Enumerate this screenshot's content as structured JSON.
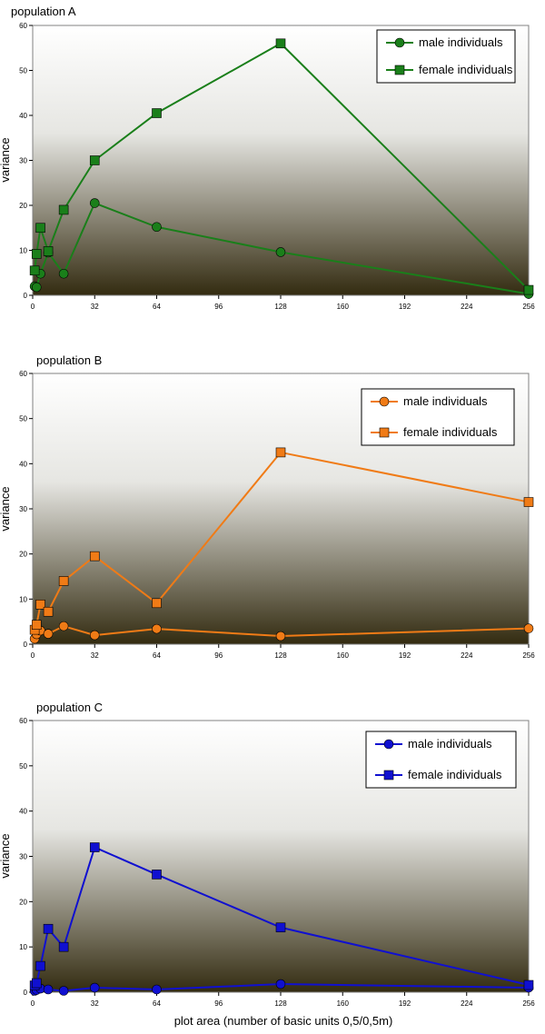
{
  "colors": {
    "plot_gradient_top": "#ffffff",
    "plot_gradient_bottom": "#332b10",
    "axis": "#808080"
  },
  "chart_data": [
    {
      "type": "line",
      "title": "population A",
      "ylabel": "variance",
      "xlabel": "",
      "xlim": [
        0,
        256
      ],
      "ylim": [
        0,
        60
      ],
      "xticks": [
        0,
        32,
        64,
        96,
        128,
        160,
        192,
        224,
        256
      ],
      "yticks": [
        0,
        10,
        20,
        30,
        40,
        50,
        60
      ],
      "grid": false,
      "legend": "top-right",
      "x": [
        1,
        2,
        4,
        8,
        16,
        32,
        64,
        128,
        256
      ],
      "series": [
        {
          "name": "male individuals",
          "marker": "circle",
          "color": "#1a7f1a",
          "values": [
            2,
            1.8,
            4.8,
            9.5,
            4.8,
            20.5,
            15.2,
            9.6,
            0.3
          ]
        },
        {
          "name": "female individuals",
          "marker": "square",
          "color": "#1a7f1a",
          "values": [
            5.5,
            9.2,
            15,
            9.8,
            19,
            30,
            40.5,
            56,
            1.2
          ]
        }
      ]
    },
    {
      "type": "line",
      "title": "population B",
      "ylabel": "variance",
      "xlabel": "",
      "xlim": [
        0,
        256
      ],
      "ylim": [
        0,
        60
      ],
      "xticks": [
        0,
        32,
        64,
        96,
        128,
        160,
        192,
        224,
        256
      ],
      "yticks": [
        0,
        10,
        20,
        30,
        40,
        50,
        60
      ],
      "grid": false,
      "legend": "top-right",
      "x": [
        1,
        2,
        4,
        8,
        16,
        32,
        64,
        128,
        256
      ],
      "series": [
        {
          "name": "male individuals",
          "marker": "circle",
          "color": "#f07b16",
          "values": [
            1.2,
            2.2,
            3,
            2.3,
            4,
            2,
            3.4,
            1.8,
            3.5
          ]
        },
        {
          "name": "female individuals",
          "marker": "square",
          "color": "#f07b16",
          "values": [
            3.2,
            4.3,
            8.8,
            7.2,
            14,
            19.5,
            9.1,
            42.5,
            31.5
          ]
        }
      ]
    },
    {
      "type": "line",
      "title": "population C",
      "ylabel": "variance",
      "xlabel": "plot area (number of basic units 0,5/0,5m)",
      "xlim": [
        0,
        256
      ],
      "ylim": [
        0,
        60
      ],
      "xticks": [
        0,
        32,
        64,
        96,
        128,
        160,
        192,
        224,
        256
      ],
      "yticks": [
        0,
        10,
        20,
        30,
        40,
        50,
        60
      ],
      "grid": false,
      "legend": "top-right",
      "x": [
        1,
        2,
        4,
        8,
        16,
        32,
        64,
        128,
        256
      ],
      "series": [
        {
          "name": "male individuals",
          "marker": "circle",
          "color": "#1010d0",
          "values": [
            0.3,
            0.5,
            0.8,
            0.6,
            0.3,
            1,
            0.6,
            1.8,
            1
          ]
        },
        {
          "name": "female individuals",
          "marker": "square",
          "color": "#1010d0",
          "values": [
            1.5,
            2,
            5.8,
            14,
            10,
            32,
            26,
            14.3,
            1.6
          ]
        }
      ]
    }
  ]
}
